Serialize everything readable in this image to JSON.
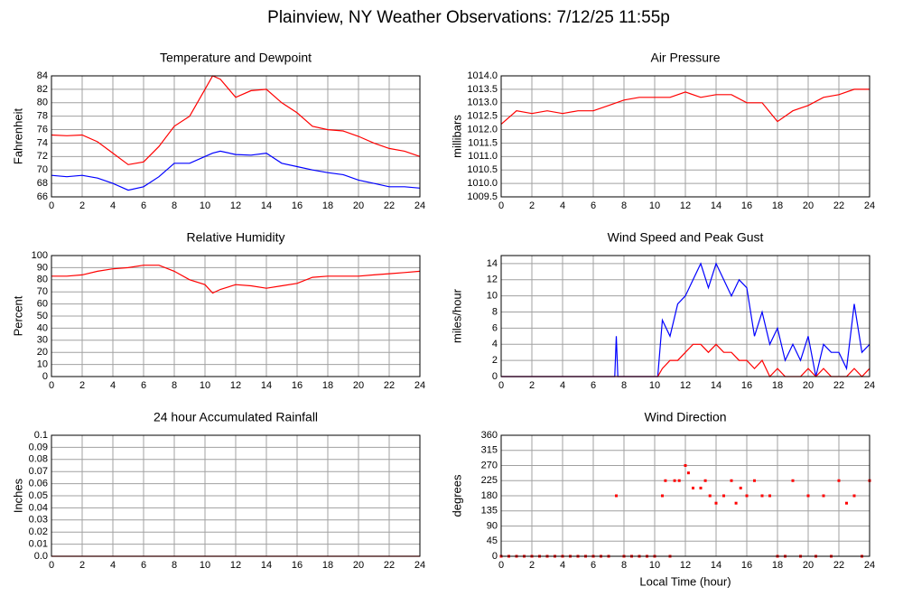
{
  "title": "Plainview, NY Weather Observations: 7/12/25 11:55p",
  "chart_data": [
    {
      "type": "line",
      "title": "Temperature and Dewpoint",
      "ylabel": "Fahrenheit",
      "x": [
        0,
        1,
        2,
        3,
        4,
        5,
        6,
        7,
        8,
        9,
        10,
        10.5,
        11,
        12,
        13,
        14,
        15,
        16,
        17,
        18,
        19,
        20,
        21,
        22,
        23,
        24
      ],
      "series": [
        {
          "color": "#ff0000",
          "values": [
            75.2,
            75.1,
            75.2,
            74.2,
            72.5,
            70.8,
            71.2,
            73.5,
            76.5,
            78,
            82,
            84,
            83.5,
            80.8,
            81.8,
            82,
            80,
            78.5,
            76.5,
            76,
            75.8,
            75,
            74,
            73.2,
            72.8,
            72
          ]
        },
        {
          "color": "#0000ff",
          "values": [
            69.2,
            69,
            69.2,
            68.8,
            68,
            67,
            67.5,
            69,
            71,
            71,
            72,
            72.5,
            72.8,
            72.3,
            72.2,
            72.5,
            71,
            70.5,
            70,
            69.6,
            69.3,
            68.5,
            68,
            67.5,
            67.5,
            67.3
          ]
        }
      ],
      "xlim": [
        0,
        24
      ],
      "xticks": [
        0,
        2,
        4,
        6,
        8,
        10,
        12,
        14,
        16,
        18,
        20,
        22,
        24
      ],
      "ylim": [
        66,
        84
      ],
      "yticks": [
        66,
        68,
        70,
        72,
        74,
        76,
        78,
        80,
        82,
        84
      ],
      "grid": true
    },
    {
      "type": "line",
      "title": "Air Pressure",
      "ylabel": "millibars",
      "x": [
        0,
        1,
        2,
        3,
        4,
        5,
        6,
        7,
        8,
        9,
        10,
        11,
        12,
        13,
        14,
        15,
        16,
        17,
        18,
        19,
        20,
        21,
        22,
        23,
        24
      ],
      "series": [
        {
          "color": "#ff0000",
          "values": [
            1012.2,
            1012.7,
            1012.6,
            1012.7,
            1012.6,
            1012.7,
            1012.7,
            1012.9,
            1013.1,
            1013.2,
            1013.2,
            1013.2,
            1013.4,
            1013.2,
            1013.3,
            1013.3,
            1013.0,
            1013.0,
            1012.3,
            1012.7,
            1012.9,
            1013.2,
            1013.3,
            1013.5,
            1013.5
          ]
        }
      ],
      "xlim": [
        0,
        24
      ],
      "xticks": [
        0,
        2,
        4,
        6,
        8,
        10,
        12,
        14,
        16,
        18,
        20,
        22,
        24
      ],
      "ylim": [
        1009.5,
        1014
      ],
      "yticks": [
        1009.5,
        {
          "value": 1010,
          "label": "1010.0"
        },
        1010.5,
        {
          "value": 1011,
          "label": "1011.0"
        },
        1011.5,
        {
          "value": 1012,
          "label": "1012.0"
        },
        1012.5,
        {
          "value": 1013,
          "label": "1013.0"
        },
        1013.5,
        {
          "value": 1014,
          "label": "1014.0"
        }
      ],
      "grid": true
    },
    {
      "type": "line",
      "title": "Relative Humidity",
      "ylabel": "Percent",
      "x": [
        0,
        1,
        2,
        3,
        4,
        5,
        6,
        7,
        8,
        9,
        10,
        10.5,
        11,
        12,
        13,
        14,
        15,
        16,
        17,
        18,
        19,
        20,
        21,
        22,
        23,
        24
      ],
      "series": [
        {
          "color": "#ff0000",
          "values": [
            83,
            83,
            84,
            87,
            89,
            90,
            92,
            92,
            87,
            80,
            76,
            69,
            72,
            76,
            75,
            73,
            75,
            77,
            82,
            83,
            83,
            83,
            84,
            85,
            86,
            87
          ]
        }
      ],
      "xlim": [
        0,
        24
      ],
      "xticks": [
        0,
        2,
        4,
        6,
        8,
        10,
        12,
        14,
        16,
        18,
        20,
        22,
        24
      ],
      "ylim": [
        0,
        100
      ],
      "yticks": [
        0,
        10,
        20,
        30,
        40,
        50,
        60,
        70,
        80,
        90,
        100
      ],
      "grid": true
    },
    {
      "type": "line",
      "title": "Wind Speed and Peak Gust",
      "ylabel": "miles/hour",
      "x": [
        0,
        7.4,
        7.5,
        7.6,
        10.2,
        10.5,
        11,
        11.5,
        12,
        12.5,
        13,
        13.5,
        14,
        14.5,
        15,
        15.5,
        16,
        16.5,
        17,
        17.5,
        18,
        18.5,
        19,
        19.5,
        20,
        20.5,
        21,
        21.5,
        22,
        22.5,
        23,
        23.5,
        24
      ],
      "series": [
        {
          "color": "#0000ff",
          "values": [
            0,
            0,
            5,
            0,
            0,
            7,
            5,
            9,
            10,
            12,
            14,
            11,
            14,
            12,
            10,
            12,
            11,
            5,
            8,
            4,
            6,
            2,
            4,
            2,
            5,
            0,
            4,
            3,
            3,
            1,
            9,
            3,
            4
          ]
        },
        {
          "color": "#ff0000",
          "values": [
            0,
            0,
            0,
            0,
            0,
            1,
            2,
            2,
            3,
            4,
            4,
            3,
            4,
            3,
            3,
            2,
            2,
            1,
            2,
            0,
            1,
            0,
            0,
            0,
            1,
            0,
            1,
            0,
            0,
            0,
            1,
            0,
            1
          ]
        }
      ],
      "xlim": [
        0,
        24
      ],
      "xticks": [
        0,
        2,
        4,
        6,
        8,
        10,
        12,
        14,
        16,
        18,
        20,
        22,
        24
      ],
      "ylim": [
        0,
        15
      ],
      "yticks": [
        0,
        2,
        4,
        6,
        8,
        10,
        12,
        14
      ],
      "grid": true
    },
    {
      "type": "line",
      "title": "24 hour Accumulated Rainfall",
      "ylabel": "Inches",
      "x": [
        0,
        24
      ],
      "series": [
        {
          "color": "#ff0000",
          "values": [
            0,
            0
          ]
        }
      ],
      "xlim": [
        0,
        24
      ],
      "xticks": [
        0,
        2,
        4,
        6,
        8,
        10,
        12,
        14,
        16,
        18,
        20,
        22,
        24
      ],
      "ylim": [
        0,
        0.1
      ],
      "yticks": [
        {
          "value": 0,
          "label": "0.0"
        },
        0.01,
        0.02,
        0.03,
        0.04,
        0.05,
        0.06,
        0.07,
        0.08,
        0.09,
        0.1
      ],
      "grid": true
    },
    {
      "type": "scatter",
      "title": "Wind Direction",
      "ylabel": "degrees",
      "xlabel": "Local Time (hour)",
      "x": [
        0,
        0.5,
        1,
        1.5,
        2,
        2.5,
        3,
        3.5,
        4,
        4.5,
        5,
        5.5,
        6,
        6.5,
        7,
        7.5,
        8,
        8.5,
        9,
        9.5,
        10,
        10.5,
        10.7,
        11,
        11.3,
        11.6,
        12,
        12.2,
        12.5,
        13,
        13.3,
        13.6,
        14,
        14.5,
        15,
        15.3,
        15.6,
        16,
        16.5,
        17,
        17.5,
        18,
        18.5,
        19,
        19.5,
        20,
        20.5,
        21,
        21.5,
        22,
        22.5,
        23,
        23.5,
        24
      ],
      "series": [
        {
          "color": "#ff0000",
          "values": [
            0,
            0,
            0,
            0,
            0,
            0,
            0,
            0,
            0,
            0,
            0,
            0,
            0,
            0,
            0,
            180,
            0,
            0,
            0,
            0,
            0,
            180,
            225,
            0,
            225,
            225,
            270,
            248,
            203,
            203,
            225,
            180,
            158,
            180,
            225,
            158,
            203,
            180,
            225,
            180,
            180,
            0,
            0,
            225,
            0,
            180,
            0,
            180,
            0,
            225,
            158,
            180,
            0,
            225
          ]
        }
      ],
      "xlim": [
        0,
        24
      ],
      "xticks": [
        0,
        2,
        4,
        6,
        8,
        10,
        12,
        14,
        16,
        18,
        20,
        22,
        24
      ],
      "ylim": [
        0,
        360
      ],
      "yticks": [
        0,
        45,
        90,
        135,
        180,
        225,
        270,
        315,
        360
      ],
      "grid": true
    }
  ]
}
